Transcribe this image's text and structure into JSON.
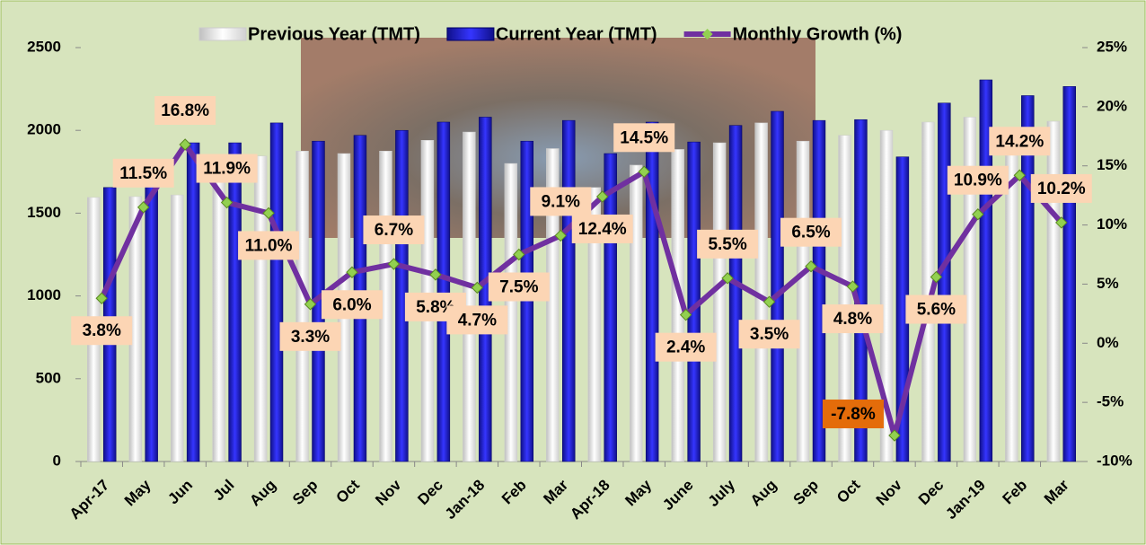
{
  "chart_data": {
    "type": "bar-line",
    "categories": [
      "Apr-17",
      "May",
      "Jun",
      "Jul",
      "Aug",
      "Sep",
      "Oct",
      "Nov",
      "Dec",
      "Jan-18",
      "Feb",
      "Mar",
      "Apr-18",
      "May",
      "June",
      "July",
      "Aug",
      "Sep",
      "Oct",
      "Nov",
      "Dec",
      "Jan-19",
      "Feb",
      "Mar"
    ],
    "series": [
      {
        "name": "Previous Year (TMT)",
        "color": "#ffffff",
        "type": "bar",
        "values": [
          1595,
          1600,
          1610,
          1720,
          1845,
          1875,
          1860,
          1875,
          1940,
          1990,
          1800,
          1890,
          1655,
          1790,
          1885,
          1925,
          2045,
          1935,
          1970,
          2000,
          2050,
          2080,
          1935,
          2055
        ]
      },
      {
        "name": "Current Year (TMT)",
        "color": "#2020d0",
        "type": "bar",
        "values": [
          1655,
          1785,
          1925,
          1925,
          2045,
          1935,
          1970,
          2000,
          2050,
          2080,
          1935,
          2060,
          1860,
          2050,
          1930,
          2030,
          2115,
          2060,
          2065,
          1840,
          2165,
          2305,
          2210,
          2265
        ]
      },
      {
        "name": "Monthly Growth (%)",
        "color": "#7030a0",
        "type": "line",
        "axis": "y2",
        "values": [
          3.8,
          11.5,
          16.8,
          11.9,
          11.0,
          3.3,
          6.0,
          6.7,
          5.8,
          4.7,
          7.5,
          9.1,
          12.4,
          14.5,
          2.4,
          5.5,
          3.5,
          6.5,
          4.8,
          -7.8,
          5.6,
          10.9,
          14.2,
          10.2
        ],
        "value_labels": [
          "3.8%",
          "11.5%",
          "16.8%",
          "11.9%",
          "11.0%",
          "3.3%",
          "6.0%",
          "6.7%",
          "5.8%",
          "4.7%",
          "7.5%",
          "9.1%",
          "12.4%",
          "14.5%",
          "2.4%",
          "5.5%",
          "3.5%",
          "6.5%",
          "4.8%",
          "-7.8%",
          "5.6%",
          "10.9%",
          "14.2%",
          "10.2%"
        ]
      }
    ],
    "ylim": [
      0,
      2500
    ],
    "yticks": [
      0,
      500,
      1000,
      1500,
      2000,
      2500
    ],
    "y2lim": [
      -10,
      25
    ],
    "y2ticks": [
      {
        "value": -10,
        "label": "-10%"
      },
      {
        "value": -5,
        "label": "-5%"
      },
      {
        "value": 0,
        "label": "0%"
      },
      {
        "value": 5,
        "label": "5%"
      },
      {
        "value": 10,
        "label": "10%"
      },
      {
        "value": 15,
        "label": "15%"
      },
      {
        "value": 20,
        "label": "20%"
      },
      {
        "value": 25,
        "label": "25%"
      }
    ],
    "legend": "top"
  }
}
